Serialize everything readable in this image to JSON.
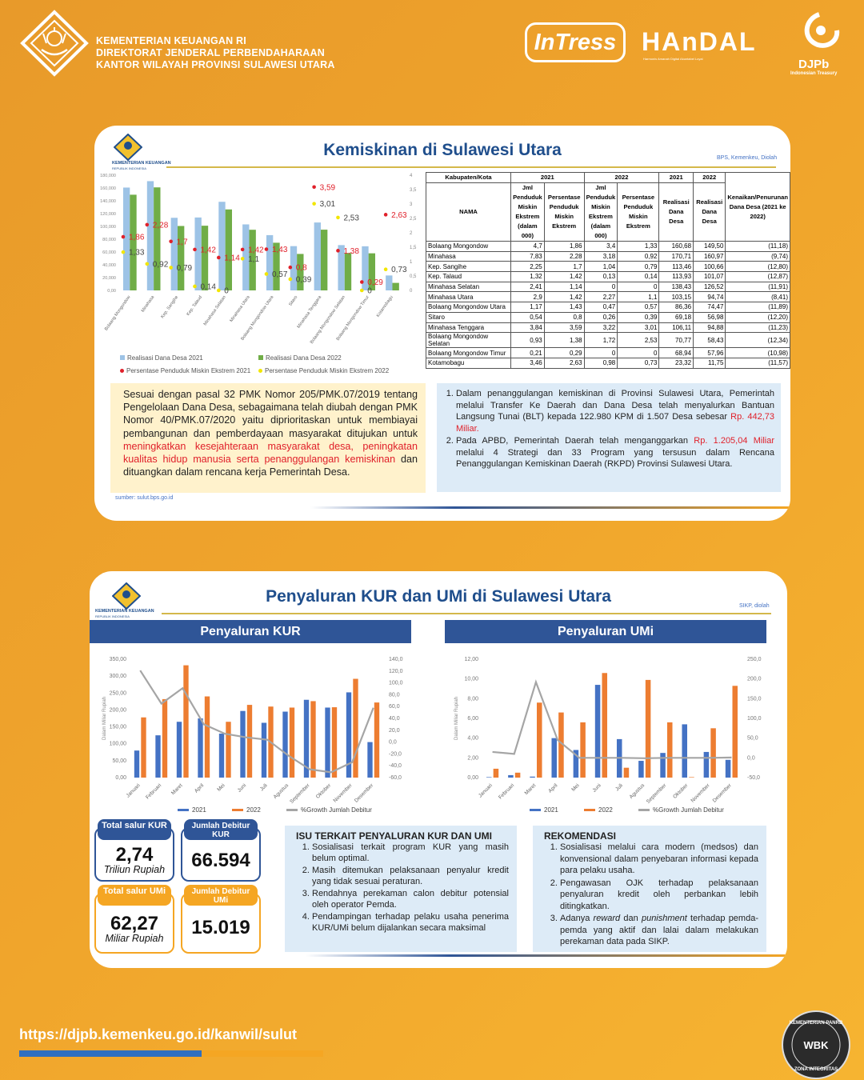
{
  "header": {
    "line1": "KEMENTERIAN KEUANGAN RI",
    "line2": "DIREKTORAT JENDERAL PERBENDAHARAAN",
    "line3": "KANTOR WILAYAH PROVINSI SULAWESI UTARA",
    "brand1": "InTress",
    "brand2": "HAnDAL",
    "brand2_sub": "Harmonis   Amanah   Digital   Akuntabel   Loyal",
    "brand3": "DJPb",
    "brand3_sub": "Indonesian Treasury"
  },
  "logo_text": {
    "name": "KEMENTERIAN KEUANGAN",
    "sub": "REPUBLIK INDONESIA"
  },
  "card1": {
    "title": "Kemiskinan di Sulawesi Utara",
    "source_note": "BPS, Kemenkeu, Diolah",
    "legend": [
      "Realisasi Dana Desa 2021",
      "Realisasi Dana Desa 2022",
      "Persentase Penduduk Miskin Ekstrem 2021",
      "Persentase Penduduk Miskin Ekstrem 2022"
    ],
    "table": {
      "h_kab": "Kabupaten/Kota",
      "h_2021": "2021",
      "h_2022": "2022",
      "h_nama": "NAMA",
      "h_jml": "Jml Penduduk Miskin Ekstrem (dalam 000)",
      "h_pers": "Persentase Penduduk Miskin Ekstrem",
      "h_real": "Realisasi Dana Desa",
      "h_kenaikan": "Kenaikan/Penurunan Dana Desa (2021 ke 2022)",
      "rows": [
        [
          "Bolaang Mongondow",
          "4,7",
          "1,86",
          "3,4",
          "1,33",
          "160,68",
          "149,50",
          "(11,18)"
        ],
        [
          "Minahasa",
          "7,83",
          "2,28",
          "3,18",
          "0,92",
          "170,71",
          "160,97",
          "(9,74)"
        ],
        [
          "Kep. Sangihe",
          "2,25",
          "1,7",
          "1,04",
          "0,79",
          "113,46",
          "100,66",
          "(12,80)"
        ],
        [
          "Kep. Talaud",
          "1,32",
          "1,42",
          "0,13",
          "0,14",
          "113,93",
          "101,07",
          "(12,87)"
        ],
        [
          "Minahasa Selatan",
          "2,41",
          "1,14",
          "0",
          "0",
          "138,43",
          "126,52",
          "(11,91)"
        ],
        [
          "Minahasa Utara",
          "2,9",
          "1,42",
          "2,27",
          "1,1",
          "103,15",
          "94,74",
          "(8,41)"
        ],
        [
          "Bolaang Mongondow Utara",
          "1,17",
          "1,43",
          "0,47",
          "0,57",
          "86,36",
          "74,47",
          "(11,89)"
        ],
        [
          "Sitaro",
          "0,54",
          "0,8",
          "0,26",
          "0,39",
          "69,18",
          "56,98",
          "(12,20)"
        ],
        [
          "Minahasa Tenggara",
          "3,84",
          "3,59",
          "3,22",
          "3,01",
          "106,11",
          "94,88",
          "(11,23)"
        ],
        [
          "Bolaang Mongondow Selatan",
          "0,93",
          "1,38",
          "1,72",
          "2,53",
          "70,77",
          "58,43",
          "(12,34)"
        ],
        [
          "Bolaang Mongondow Timur",
          "0,21",
          "0,29",
          "0",
          "0",
          "68,94",
          "57,96",
          "(10,98)"
        ],
        [
          "Kotamobagu",
          "3,46",
          "2,63",
          "0,98",
          "0,73",
          "23,32",
          "11,75",
          "(11,57)"
        ]
      ]
    },
    "para_a": "Sesuai dengan pasal 32 PMK Nomor 205/PMK.07/2019 tentang Pengelolaan Dana Desa, sebagaimana telah diubah dengan PMK Nomor 40/PMK.07/2020 yaitu diprioritaskan untuk membiayai pembangunan dan pemberdayaan masyarakat ditujukan untuk ",
    "para_red": "meningkatkan kesejahteraan masyarakat desa, peningkatan kualitas hidup manusia serta penanggulangan kemiskinan",
    "para_b": " dan dituangkan dalam rencana kerja Pemerintah Desa.",
    "sumber": "sumber: sulut.bps.go.id",
    "point1_a": "Dalam penanggulangan kemiskinan di Provinsi Sulawesi Utara, Pemerintah melalui Transfer Ke Daerah dan Dana Desa telah menyalurkan Bantuan Langsung Tunai (BLT) kepada 122.980 KPM di 1.507 Desa sebesar ",
    "point1_red": "Rp. 442,73 Miliar.",
    "point2_a": "Pada APBD, Pemerintah Daerah telah menganggarkan ",
    "point2_red": "Rp. 1.205,04 Miliar",
    "point2_b": " melalui 4 Strategi dan 33 Program yang tersusun dalam Rencana Penanggulangan Kemiskinan Daerah (RKPD) Provinsi Sulawesi Utara."
  },
  "card2": {
    "title": "Penyaluran KUR dan UMi di Sulawesi Utara",
    "source_note": "SIKP, diolah",
    "kur_head": "Penyaluran KUR",
    "umi_head": "Penyaluran UMi",
    "legend": [
      "2021",
      "2022",
      "%Growth Jumlah Debitur"
    ],
    "ylabel": "Dalam Miliar Rupiah",
    "stats": {
      "kur_total_label": "Total salur KUR",
      "kur_total_value": "2,74",
      "kur_total_unit": "Triliun Rupiah",
      "kur_debitur_label": "Jumlah Debitur KUR",
      "kur_debitur_value": "66.594",
      "umi_total_label": "Total salur UMi",
      "umi_total_value": "62,27",
      "umi_total_unit": "Miliar Rupiah",
      "umi_debitur_label": "Jumlah Debitur UMi",
      "umi_debitur_value": "15.019"
    },
    "isu_title": "ISU TERKAIT PENYALURAN  KUR DAN UMI",
    "isu": [
      "Sosialisasi terkait program KUR yang masih belum optimal.",
      "Masih ditemukan pelaksanaan penyalur kredit yang tidak sesuai peraturan.",
      "Rendahnya perekaman calon debitur potensial oleh operator Pemda.",
      "Pendampingan terhadap pelaku usaha penerima KUR/UMi belum dijalankan secara maksimal"
    ],
    "rek_title": "REKOMENDASI",
    "rek1": "Sosialisasi melalui cara modern (medsos) dan konvensional dalam penyebaran informasi kepada para pelaku usaha.",
    "rek2": "Pengawasan OJK terhadap pelaksanaan penyaluran kredit oleh perbankan lebih ditingkatkan.",
    "rek3_a": "Adanya ",
    "rek3_i1": "reward",
    "rek3_b": " dan ",
    "rek3_i2": "punishment",
    "rek3_c": " terhadap pemda-pemda yang aktif dan lalai dalam melakukan perekaman data pada SIKP."
  },
  "footer": {
    "url": "https://djpb.kemenkeu.go.id/kanwil/sulut",
    "badge_top": "KEMENTERIAN PANRB",
    "badge_bottom": "ZONA INTEGRITAS",
    "badge_mid": "WBK"
  },
  "colors": {
    "blue_bar": "#9dc3e6",
    "green_bar": "#70ad47",
    "red_dot": "#e0202a",
    "yellow_dot": "#f2e600",
    "kur_2021": "#4472c4",
    "kur_2022": "#ed7d31",
    "growth": "#a5a5a5"
  },
  "chart_data": [
    {
      "type": "bar",
      "categories": [
        "Bolaang Mongondow",
        "Minahasa",
        "Kep. Sangihe",
        "Kep. Talaud",
        "Minahasa Selatan",
        "Minahasa Utara",
        "Bolaang Mongondow Utara",
        "Sitaro",
        "Minahasa Tenggara",
        "Bolaang Mongondow Selatan",
        "Bolaang Mongondow Timur",
        "Kotamobagu"
      ],
      "series": [
        {
          "name": "Realisasi Dana Desa 2021",
          "values": [
            160.68,
            170.71,
            113.46,
            113.93,
            138.43,
            103.15,
            86.36,
            69.18,
            106.11,
            70.77,
            68.94,
            23.32
          ]
        },
        {
          "name": "Realisasi Dana Desa 2022",
          "values": [
            149.5,
            160.97,
            100.66,
            101.07,
            126.52,
            94.74,
            74.47,
            56.98,
            94.88,
            58.43,
            57.96,
            11.75
          ]
        },
        {
          "name": "Persentase Penduduk Miskin Ekstrem 2021",
          "values": [
            1.86,
            2.28,
            1.7,
            1.42,
            1.14,
            1.42,
            1.43,
            0.8,
            3.59,
            1.38,
            0.29,
            2.63
          ]
        },
        {
          "name": "Persentase Penduduk Miskin Ekstrem 2022",
          "values": [
            1.33,
            0.92,
            0.79,
            0.14,
            0,
            1.1,
            0.57,
            0.39,
            3.01,
            2.53,
            0,
            0.73
          ]
        }
      ],
      "ylim_left": [
        0,
        180
      ],
      "ylim_right": [
        0,
        4
      ],
      "left_ticks": [
        "0,00",
        "20,000",
        "40,000",
        "60,000",
        "80,000",
        "100,000",
        "120,000",
        "140,000",
        "160,000",
        "180,000"
      ],
      "right_ticks": [
        "0",
        "0,5",
        "1",
        "1,5",
        "2",
        "2,5",
        "3",
        "3,5",
        "4"
      ],
      "point_labels_2021": [
        "1,86",
        "2,28",
        "1,7",
        "1,42",
        "1,14",
        "1,42",
        "1,43",
        "0,8",
        "3,59",
        "1,38",
        "0,29",
        "2,63"
      ],
      "point_labels_2022": [
        "1,33",
        "0,92",
        "0,79",
        "0,14",
        "0",
        "1,1",
        "0,57",
        "0,39",
        "3,01",
        "2,53",
        "0",
        "0,73"
      ]
    },
    {
      "type": "bar",
      "title": "Penyaluran KUR",
      "categories": [
        "Januari",
        "Februari",
        "Maret",
        "April",
        "Mei",
        "Juni",
        "Juli",
        "Agustus",
        "September",
        "Oktober",
        "November",
        "Desember"
      ],
      "series": [
        {
          "name": "2021",
          "values": [
            80,
            125,
            165,
            175,
            130,
            197,
            162,
            195,
            230,
            207,
            252,
            105
          ]
        },
        {
          "name": "2022",
          "values": [
            178,
            232,
            332,
            240,
            165,
            215,
            210,
            207,
            226,
            208,
            292,
            222
          ]
        },
        {
          "name": "%Growth Jumlah Debitur",
          "values": [
            121,
            65,
            91,
            30,
            14,
            8,
            4,
            -23,
            -46,
            -51,
            -34,
            58
          ]
        }
      ],
      "ylim_left": [
        0,
        350
      ],
      "ylim_right": [
        -60,
        140
      ],
      "left_ticks": [
        "0,00",
        "50,00",
        "100,00",
        "150,00",
        "200,00",
        "250,00",
        "300,00",
        "350,00"
      ],
      "right_ticks": [
        "-60,0",
        "-40,0",
        "-20,0",
        "0,0",
        "20,0",
        "40,0",
        "60,0",
        "80,0",
        "100,0",
        "120,0",
        "140,0"
      ]
    },
    {
      "type": "bar",
      "title": "Penyaluran UMi",
      "categories": [
        "Januari",
        "Februari",
        "Maret",
        "April",
        "Mei",
        "Juni",
        "Juli",
        "Agustus",
        "September",
        "Oktober",
        "November",
        "Desember"
      ],
      "series": [
        {
          "name": "2021",
          "values": [
            0.05,
            0.25,
            0.1,
            4.0,
            2.8,
            9.4,
            3.9,
            1.7,
            2.5,
            5.4,
            2.6,
            1.8
          ]
        },
        {
          "name": "2022",
          "values": [
            0.9,
            0.5,
            7.6,
            6.6,
            5.6,
            10.6,
            1.0,
            9.9,
            5.6,
            0.05,
            5.0,
            9.3
          ]
        },
        {
          "name": "%Growth Jumlah Debitur",
          "values": [
            15,
            10,
            192,
            45,
            0,
            0,
            0,
            -1,
            0,
            0,
            0,
            1
          ]
        }
      ],
      "ylim_left": [
        0,
        12
      ],
      "ylim_right": [
        -50,
        250
      ],
      "left_ticks": [
        "0,00",
        "2,00",
        "4,00",
        "6,00",
        "8,00",
        "10,00",
        "12,00"
      ],
      "right_ticks": [
        "-50,0",
        "0,0",
        "50,0",
        "100,0",
        "150,0",
        "200,0",
        "250,0"
      ]
    }
  ]
}
